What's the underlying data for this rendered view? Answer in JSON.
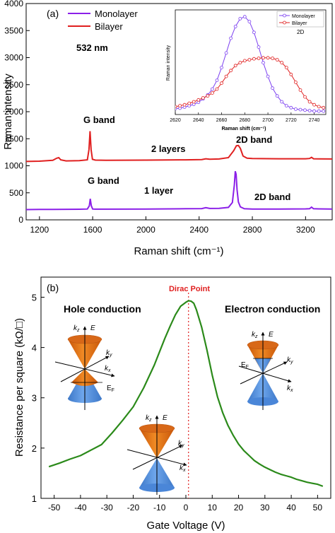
{
  "chart_data": [
    {
      "type": "line",
      "panel_label": "(a)",
      "xlabel": "Raman shift (cm⁻¹)",
      "ylabel": "Raman intensity",
      "xlim": [
        1100,
        3400
      ],
      "ylim": [
        0,
        4000
      ],
      "xticks": [
        1200,
        1600,
        2000,
        2400,
        2800,
        3200
      ],
      "yticks": [
        0,
        500,
        1000,
        1500,
        2000,
        2500,
        3000,
        3500,
        4000
      ],
      "legend": "top-left",
      "series": [
        {
          "name": "Monolayer",
          "color": "#8b1fe8",
          "x": [
            1100,
            1200,
            1300,
            1400,
            1500,
            1560,
            1575,
            1582,
            1590,
            1600,
            1620,
            1700,
            2000,
            2300,
            2420,
            2450,
            2480,
            2550,
            2620,
            2650,
            2665,
            2672,
            2678,
            2685,
            2695,
            2710,
            2740,
            2800,
            3000,
            3200,
            3230,
            3245,
            3260,
            3300,
            3400
          ],
          "y": [
            190,
            192,
            194,
            195,
            196,
            200,
            260,
            390,
            260,
            200,
            197,
            198,
            200,
            205,
            208,
            225,
            210,
            212,
            230,
            320,
            650,
            900,
            840,
            560,
            330,
            240,
            205,
            200,
            200,
            202,
            205,
            235,
            205,
            203,
            200
          ]
        },
        {
          "name": "Bilayer",
          "color": "#e02020",
          "x": [
            1100,
            1200,
            1300,
            1330,
            1345,
            1360,
            1400,
            1500,
            1560,
            1572,
            1580,
            1588,
            1598,
            1620,
            1700,
            2000,
            2300,
            2420,
            2450,
            2480,
            2550,
            2620,
            2660,
            2680,
            2695,
            2710,
            2730,
            2760,
            2800,
            3000,
            3200,
            3230,
            3245,
            3260,
            3300,
            3400
          ],
          "y": [
            1080,
            1085,
            1100,
            1140,
            1150,
            1110,
            1090,
            1095,
            1110,
            1300,
            1640,
            1300,
            1120,
            1105,
            1100,
            1105,
            1110,
            1115,
            1130,
            1120,
            1125,
            1150,
            1280,
            1370,
            1375,
            1320,
            1180,
            1140,
            1135,
            1130,
            1130,
            1135,
            1155,
            1130,
            1128,
            1125
          ]
        }
      ],
      "annotations": [
        "532 nm",
        "G band",
        "2 layers",
        "2D band",
        "G band",
        "1 layer",
        "2D band"
      ]
    },
    {
      "type": "line",
      "inset": true,
      "title": "2D",
      "xlabel": "Raman shift (cm⁻¹)",
      "ylabel": "Raman intensity",
      "xlim": [
        2620,
        2750
      ],
      "xticks": [
        2620,
        2640,
        2660,
        2680,
        2700,
        2720,
        2740
      ],
      "legend": "top-right",
      "series": [
        {
          "name": "Monolayer",
          "color": "#7b3ff0",
          "x": [
            2620,
            2624,
            2628,
            2632,
            2636,
            2640,
            2644,
            2648,
            2652,
            2656,
            2660,
            2664,
            2668,
            2672,
            2676,
            2680,
            2684,
            2688,
            2692,
            2696,
            2700,
            2704,
            2708,
            2712,
            2716,
            2720,
            2724,
            2728,
            2732,
            2736,
            2740,
            2744,
            2748
          ],
          "y": [
            0.06,
            0.065,
            0.075,
            0.09,
            0.105,
            0.125,
            0.16,
            0.2,
            0.26,
            0.35,
            0.48,
            0.63,
            0.78,
            0.9,
            0.98,
            1.0,
            0.95,
            0.84,
            0.69,
            0.53,
            0.39,
            0.27,
            0.19,
            0.13,
            0.09,
            0.07,
            0.055,
            0.05,
            0.045,
            0.04,
            0.035,
            0.035,
            0.035
          ]
        },
        {
          "name": "Bilayer",
          "color": "#e02020",
          "x": [
            2620,
            2624,
            2628,
            2632,
            2636,
            2640,
            2644,
            2648,
            2652,
            2656,
            2660,
            2664,
            2668,
            2672,
            2676,
            2680,
            2684,
            2688,
            2692,
            2696,
            2700,
            2704,
            2708,
            2712,
            2716,
            2720,
            2724,
            2728,
            2732,
            2736,
            2740,
            2744,
            2748
          ],
          "y": [
            0.08,
            0.09,
            0.1,
            0.115,
            0.13,
            0.15,
            0.17,
            0.19,
            0.22,
            0.26,
            0.32,
            0.39,
            0.45,
            0.5,
            0.53,
            0.55,
            0.56,
            0.57,
            0.575,
            0.58,
            0.58,
            0.575,
            0.56,
            0.53,
            0.48,
            0.41,
            0.33,
            0.25,
            0.18,
            0.13,
            0.1,
            0.08,
            0.07
          ]
        }
      ]
    },
    {
      "type": "line",
      "panel_label": "(b)",
      "xlabel": "Gate Voltage (V)",
      "ylabel": "Resistance per square (kΩ/□)",
      "xlim": [
        -55,
        55
      ],
      "ylim": [
        1,
        5.4
      ],
      "xticks": [
        -50,
        -40,
        -30,
        -20,
        -10,
        0,
        10,
        20,
        30,
        40,
        50
      ],
      "yticks": [
        1,
        2,
        3,
        4,
        5
      ],
      "series": [
        {
          "color": "#2b8a1a",
          "x": [
            -52,
            -48,
            -44,
            -40,
            -36,
            -32,
            -28,
            -24,
            -20,
            -16,
            -12,
            -8,
            -6,
            -4,
            -2,
            0,
            1,
            2,
            3,
            4,
            6,
            8,
            10,
            12,
            14,
            16,
            18,
            20,
            22,
            24,
            26,
            28,
            30,
            32,
            34,
            36,
            38,
            40,
            42,
            44,
            46,
            48,
            50,
            52
          ],
          "y": [
            1.63,
            1.7,
            1.78,
            1.85,
            1.96,
            2.07,
            2.3,
            2.55,
            2.82,
            3.2,
            3.65,
            4.18,
            4.42,
            4.65,
            4.82,
            4.9,
            4.93,
            4.92,
            4.88,
            4.75,
            4.4,
            3.95,
            3.45,
            3.02,
            2.7,
            2.45,
            2.25,
            2.08,
            1.95,
            1.85,
            1.75,
            1.68,
            1.62,
            1.57,
            1.52,
            1.48,
            1.45,
            1.42,
            1.38,
            1.35,
            1.32,
            1.3,
            1.28,
            1.24
          ]
        }
      ],
      "annotations": [
        "Dirac Point",
        "Hole conduction",
        "Electron conduction"
      ],
      "dirac_point_x": 1,
      "axis_labels": {
        "kz": "k",
        "kz_sub": "z",
        "ky": "k",
        "ky_sub": "y",
        "kx": "k",
        "kx_sub": "x",
        "E": "E",
        "EF": "E",
        "EF_sub": "F"
      }
    }
  ]
}
